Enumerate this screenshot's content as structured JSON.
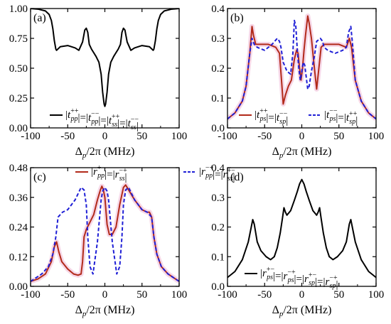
{
  "colors": {
    "black": "#000000",
    "red": "#b22a1a",
    "blue": "#1f1fd6",
    "glow": "#f2c6dd"
  },
  "chart_data": [
    {
      "panel": "(a)",
      "type": "line",
      "xlabel": "Δp/2π (MHz)",
      "xlim": [
        -100,
        100
      ],
      "ylim": [
        0.0,
        1.0
      ],
      "xticks": [
        -100,
        -50,
        0,
        50,
        100
      ],
      "yticks": [
        0.0,
        0.25,
        0.5,
        0.75,
        1.0
      ],
      "ytick_labels": [
        "0.00",
        "0.25",
        "0.50",
        "0.75",
        "1.00"
      ],
      "series": [
        {
          "name": "|tpp++|=|tpp−−|=|tss++|=|tss−−|",
          "style": "solid",
          "color": "#000000",
          "x": [
            -100,
            -90,
            -80,
            -75,
            -72,
            -70,
            -68,
            -66,
            -65,
            -60,
            -50,
            -40,
            -35,
            -30,
            -27,
            -25,
            -23,
            -21,
            -18,
            -12,
            -8,
            -5,
            -3,
            -1,
            0,
            1,
            3,
            5,
            8,
            12,
            18,
            21,
            23,
            25,
            27,
            30,
            35,
            40,
            50,
            60,
            65,
            66,
            68,
            70,
            72,
            75,
            80,
            90,
            100
          ],
          "y": [
            1.0,
            0.995,
            0.98,
            0.95,
            0.9,
            0.83,
            0.73,
            0.66,
            0.65,
            0.68,
            0.69,
            0.67,
            0.65,
            0.72,
            0.82,
            0.835,
            0.8,
            0.7,
            0.66,
            0.6,
            0.55,
            0.45,
            0.3,
            0.2,
            0.18,
            0.2,
            0.3,
            0.45,
            0.55,
            0.6,
            0.66,
            0.7,
            0.8,
            0.835,
            0.82,
            0.72,
            0.65,
            0.67,
            0.69,
            0.68,
            0.65,
            0.66,
            0.73,
            0.83,
            0.9,
            0.95,
            0.98,
            0.995,
            1.0
          ]
        }
      ],
      "legend": {
        "entries": [
          {
            "style": "solid",
            "color": "#000000",
            "parts": [
              [
                "|t",
                "pp",
                "++"
              ],
              [
                "|=|t",
                "pp",
                "−−"
              ],
              [
                "|=|t",
                "ss",
                "++"
              ],
              [
                "|=|t",
                "ss",
                "−−"
              ],
              [
                "|",
                "",
                ""
              ]
            ]
          }
        ]
      }
    },
    {
      "panel": "(b)",
      "type": "line",
      "xlabel": "Δp/2π (MHz)",
      "xlim": [
        -100,
        100
      ],
      "ylim": [
        0.0,
        0.4
      ],
      "xticks": [
        -100,
        -50,
        0,
        50,
        100
      ],
      "yticks": [
        0.0,
        0.1,
        0.2,
        0.3,
        0.4
      ],
      "ytick_labels": [
        "0.0",
        "0.1",
        "0.2",
        "0.3",
        "0.4"
      ],
      "series": [
        {
          "name": "|tps++|=|tsp−−|",
          "style": "solid",
          "color": "#b22a1a",
          "glow": true,
          "x": [
            -100,
            -90,
            -80,
            -75,
            -70,
            -67,
            -65,
            -62,
            -55,
            -45,
            -35,
            -30,
            -27,
            -25,
            -22,
            -18,
            -14,
            -10,
            -7,
            -5,
            -3,
            -1,
            1,
            3,
            5,
            8,
            10,
            13,
            17,
            20,
            23,
            26,
            30,
            40,
            50,
            60,
            64,
            67,
            72,
            80,
            90,
            100
          ],
          "y": [
            0.03,
            0.05,
            0.09,
            0.14,
            0.25,
            0.34,
            0.31,
            0.28,
            0.28,
            0.28,
            0.27,
            0.25,
            0.15,
            0.08,
            0.11,
            0.14,
            0.16,
            0.23,
            0.26,
            0.25,
            0.2,
            0.16,
            0.2,
            0.26,
            0.31,
            0.375,
            0.35,
            0.3,
            0.2,
            0.13,
            0.2,
            0.27,
            0.28,
            0.28,
            0.28,
            0.27,
            0.3,
            0.27,
            0.16,
            0.09,
            0.05,
            0.03
          ]
        },
        {
          "name": "|tps−−|=|tsp++|",
          "style": "dashed",
          "color": "#1f1fd6",
          "x": [
            -100,
            -90,
            -80,
            -75,
            -70,
            -67,
            -64,
            -60,
            -50,
            -40,
            -33,
            -30,
            -28,
            -25,
            -20,
            -15,
            -12,
            -10,
            -8,
            -6,
            -4,
            -2,
            0,
            2,
            4,
            6,
            8,
            10,
            13,
            17,
            20,
            25,
            28,
            30,
            35,
            45,
            55,
            60,
            63,
            66,
            68,
            72,
            80,
            90,
            100
          ],
          "y": [
            0.03,
            0.05,
            0.09,
            0.14,
            0.25,
            0.3,
            0.28,
            0.27,
            0.26,
            0.28,
            0.3,
            0.29,
            0.27,
            0.22,
            0.19,
            0.18,
            0.25,
            0.36,
            0.34,
            0.26,
            0.2,
            0.16,
            0.19,
            0.22,
            0.21,
            0.17,
            0.13,
            0.14,
            0.19,
            0.24,
            0.29,
            0.3,
            0.29,
            0.27,
            0.26,
            0.25,
            0.26,
            0.27,
            0.32,
            0.34,
            0.29,
            0.16,
            0.09,
            0.05,
            0.03
          ]
        }
      ],
      "legend": {
        "entries": [
          {
            "style": "solid",
            "color": "#b22a1a",
            "parts": [
              [
                "|t",
                "ps",
                "++"
              ],
              [
                "|=|t",
                "sp",
                "−−"
              ],
              [
                "|",
                "",
                ""
              ]
            ]
          },
          {
            "style": "dashed",
            "color": "#1f1fd6",
            "parts": [
              [
                "|t",
                "ps",
                "−−"
              ],
              [
                "|=|t",
                "sp",
                "++"
              ],
              [
                "|",
                "",
                ""
              ]
            ]
          }
        ]
      }
    },
    {
      "panel": "(c)",
      "type": "line",
      "xlabel": "Δp/2π (MHz)",
      "xlim": [
        -100,
        100
      ],
      "ylim": [
        0.0,
        0.48
      ],
      "xticks": [
        -100,
        -50,
        0,
        50,
        100
      ],
      "yticks": [
        0.0,
        0.12,
        0.24,
        0.36,
        0.48
      ],
      "ytick_labels": [
        "0.00",
        "0.12",
        "0.24",
        "0.36",
        "0.48"
      ],
      "series": [
        {
          "name": "|rpp+−|=|rss−+|",
          "style": "solid",
          "color": "#b22a1a",
          "glow": true,
          "x": [
            -100,
            -90,
            -80,
            -72,
            -68,
            -65,
            -62,
            -58,
            -50,
            -42,
            -36,
            -32,
            -30,
            -28,
            -25,
            -20,
            -15,
            -10,
            -6,
            -4,
            -2,
            0,
            3,
            6,
            10,
            15,
            20,
            25,
            28,
            32,
            40,
            50,
            57,
            60,
            63,
            66,
            70,
            76,
            85,
            95,
            100
          ],
          "y": [
            0.02,
            0.03,
            0.05,
            0.1,
            0.16,
            0.18,
            0.14,
            0.1,
            0.07,
            0.05,
            0.045,
            0.05,
            0.1,
            0.2,
            0.23,
            0.26,
            0.29,
            0.35,
            0.39,
            0.405,
            0.39,
            0.36,
            0.25,
            0.21,
            0.21,
            0.24,
            0.33,
            0.4,
            0.41,
            0.39,
            0.35,
            0.31,
            0.3,
            0.3,
            0.28,
            0.2,
            0.13,
            0.08,
            0.05,
            0.03,
            0.02
          ]
        },
        {
          "name": "|rpp−+|=|rss+−|",
          "style": "dashed",
          "color": "#1f1fd6",
          "x": [
            -100,
            -95,
            -85,
            -76,
            -70,
            -66,
            -63,
            -60,
            -57,
            -50,
            -40,
            -32,
            -28,
            -25,
            -23,
            -20,
            -16,
            -10,
            -5,
            -3,
            0,
            3,
            5,
            10,
            16,
            20,
            23,
            25,
            28,
            32,
            40,
            50,
            57,
            60,
            63,
            66,
            70,
            76,
            85,
            95,
            100
          ],
          "y": [
            0.02,
            0.03,
            0.05,
            0.08,
            0.13,
            0.2,
            0.28,
            0.29,
            0.3,
            0.31,
            0.35,
            0.4,
            0.39,
            0.33,
            0.2,
            0.08,
            0.05,
            0.18,
            0.35,
            0.385,
            0.4,
            0.385,
            0.35,
            0.18,
            0.05,
            0.08,
            0.2,
            0.33,
            0.39,
            0.4,
            0.35,
            0.31,
            0.3,
            0.29,
            0.28,
            0.2,
            0.13,
            0.08,
            0.05,
            0.03,
            0.02
          ]
        }
      ],
      "legend": {
        "entries": [
          {
            "style": "solid",
            "color": "#b22a1a",
            "parts": [
              [
                "|r",
                "pp",
                "+−"
              ],
              [
                "|=|r",
                "ss",
                "−+"
              ],
              [
                "|",
                "",
                ""
              ]
            ]
          },
          {
            "style": "dashed",
            "color": "#1f1fd6",
            "parts": [
              [
                "|r",
                "pp",
                "−+"
              ],
              [
                "|=|r",
                "ss",
                "+−"
              ],
              [
                "|",
                "",
                ""
              ]
            ]
          }
        ]
      }
    },
    {
      "panel": "(d)",
      "type": "line",
      "xlabel": "Δp/2π (MHz)",
      "xlim": [
        -100,
        100
      ],
      "ylim": [
        0.0,
        0.4
      ],
      "xticks": [
        -100,
        -50,
        0,
        50,
        100
      ],
      "yticks": [
        0.0,
        0.1,
        0.2,
        0.3,
        0.4
      ],
      "ytick_labels": [
        "0.0",
        "0.1",
        "0.2",
        "0.3",
        "0.4"
      ],
      "series": [
        {
          "name": "|rps+−|=|rps−+|=|rsp+−|=|rsp−+|",
          "style": "solid",
          "color": "#000000",
          "x": [
            -100,
            -90,
            -80,
            -72,
            -68,
            -66,
            -64,
            -60,
            -55,
            -48,
            -42,
            -37,
            -33,
            -29,
            -26,
            -24,
            -22,
            -20,
            -15,
            -10,
            -6,
            -3,
            -1,
            0,
            1,
            3,
            6,
            10,
            15,
            20,
            22,
            24,
            26,
            29,
            33,
            37,
            42,
            48,
            55,
            60,
            64,
            66,
            68,
            72,
            80,
            90,
            100
          ],
          "y": [
            0.03,
            0.05,
            0.09,
            0.15,
            0.2,
            0.225,
            0.21,
            0.15,
            0.12,
            0.1,
            0.09,
            0.1,
            0.13,
            0.18,
            0.23,
            0.265,
            0.25,
            0.24,
            0.255,
            0.29,
            0.32,
            0.345,
            0.355,
            0.36,
            0.355,
            0.345,
            0.32,
            0.29,
            0.255,
            0.24,
            0.25,
            0.265,
            0.23,
            0.18,
            0.13,
            0.1,
            0.09,
            0.1,
            0.12,
            0.15,
            0.21,
            0.225,
            0.2,
            0.15,
            0.09,
            0.05,
            0.03
          ]
        }
      ],
      "legend": {
        "entries": [
          {
            "style": "solid",
            "color": "#000000",
            "parts": [
              [
                "|r",
                "ps",
                "+−"
              ],
              [
                "|=|r",
                "ps",
                "−+"
              ],
              [
                "|=|r",
                "sp",
                "+−"
              ],
              [
                "|=|r",
                "sp",
                "−+"
              ],
              [
                "|",
                "",
                ""
              ]
            ]
          }
        ]
      }
    }
  ]
}
